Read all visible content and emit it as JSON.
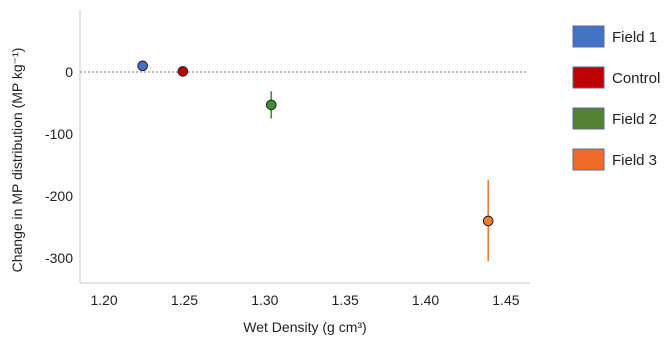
{
  "chart_data": {
    "type": "scatter",
    "title": "",
    "xlabel": "Wet Density (g cm³)",
    "ylabel": "Change in MP distribution (MP kg⁻¹)",
    "xlim": [
      1.185,
      1.465
    ],
    "ylim": [
      -340,
      100
    ],
    "xticks": [
      "1.20",
      "1.25",
      "1.30",
      "1.35",
      "1.40",
      "1.45"
    ],
    "xtick_values": [
      1.2,
      1.25,
      1.3,
      1.35,
      1.4,
      1.45
    ],
    "yticks": [
      "0",
      "-100",
      "-200",
      "-300"
    ],
    "ytick_values": [
      0,
      -100,
      -200,
      -300
    ],
    "reference_line": {
      "y": 0,
      "style": "dotted"
    },
    "legend_position": "right",
    "grid": false,
    "series": [
      {
        "name": "Field 1",
        "color": "#4472C4",
        "legend_color": "#4472C4",
        "x": 1.224,
        "y": 10,
        "err_low": 10,
        "err_high": 10
      },
      {
        "name": "Control",
        "color": "#C00000",
        "legend_color": "#C00000",
        "x": 1.249,
        "y": 1,
        "err_low": 1,
        "err_high": 1
      },
      {
        "name": "Field 2",
        "color": "#3F8F34",
        "legend_color": "#548235",
        "x": 1.304,
        "y": -53,
        "err_low": -75,
        "err_high": -31
      },
      {
        "name": "Field 3",
        "color": "#ED7D31",
        "legend_color": "#F06A2A",
        "x": 1.439,
        "y": -240,
        "err_low": -305,
        "err_high": -174
      }
    ]
  }
}
